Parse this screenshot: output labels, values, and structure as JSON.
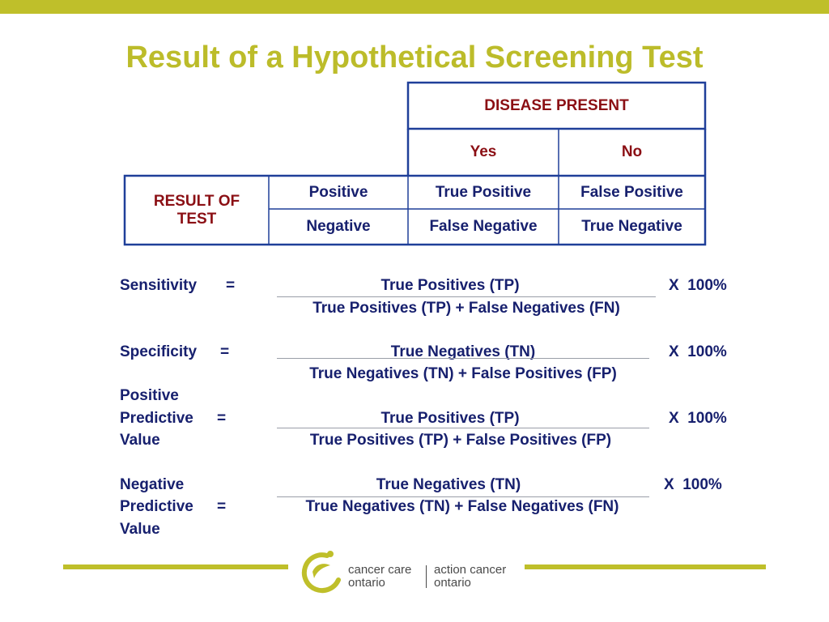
{
  "title": "Result of a Hypothetical Screening Test",
  "table": {
    "disease_header": "DISEASE PRESENT",
    "col_yes": "Yes",
    "col_no": "No",
    "row_group_line1": "RESULT OF",
    "row_group_line2": "TEST",
    "rows": [
      {
        "label": "Positive",
        "yes": "True Positive",
        "no": "False Positive"
      },
      {
        "label": "Negative",
        "yes": "False Negative",
        "no": "True Negative"
      }
    ]
  },
  "formulas": [
    {
      "label_lines": [
        "Sensitivity"
      ],
      "equals": "=",
      "numerator": "True Positives (TP)",
      "denominator": "True Positives (TP) + False Negatives (FN)",
      "multiplier": "X  100%"
    },
    {
      "label_lines": [
        "Specificity"
      ],
      "equals": "=",
      "numerator": "True Negatives (TN)",
      "denominator": "True Negatives (TN) + False Positives (FP)",
      "multiplier": "X  100%"
    },
    {
      "label_lines": [
        "Positive",
        "Predictive",
        "Value"
      ],
      "equals": "=",
      "numerator": "True Positives (TP)",
      "denominator": "True Positives (TP) + False Positives (FP)",
      "multiplier": "X  100%"
    },
    {
      "label_lines": [
        "Negative",
        "Predictive",
        "Value"
      ],
      "equals": "=",
      "numerator": "True Negatives (TN)",
      "denominator": "True Negatives (TN) + False Negatives (FN)",
      "multiplier": "X  100%"
    }
  ],
  "footer": {
    "logo_left_line1": "cancer care",
    "logo_left_line2": "ontario",
    "logo_right_line1": "action cancer",
    "logo_right_line2": "ontario"
  },
  "colors": {
    "accent": "#bfbf2a",
    "navy": "#17206e",
    "maroon": "#8b0f14",
    "border": "#1f3f99"
  }
}
